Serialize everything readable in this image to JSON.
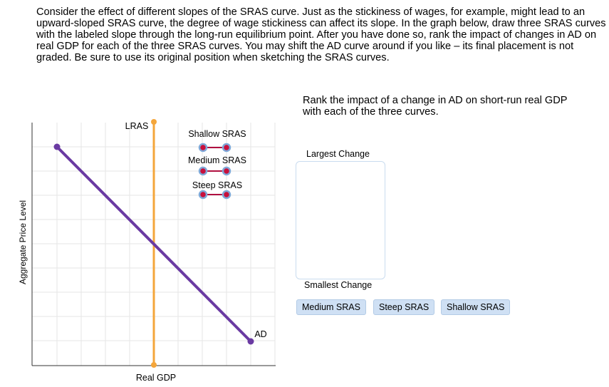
{
  "instructions": "Consider the effect of different slopes of the SRAS curve. Just as the stickiness of wages, for example, might lead to an upward-sloped SRAS curve, the degree of wage stickiness can affect its slope. In the graph below, draw three SRAS curves with the labeled slope through the long-run equilibrium point. After you have done so, rank the impact of changes in AD on real GDP for each of the three SRAS curves. You may shift the AD curve around if you like – its final placement is not graded. Be sure to use its original position when sketching the SRAS curves.",
  "graph": {
    "y_label": "Aggregate Price Level",
    "x_label": "Real GDP",
    "lras_label": "LRAS",
    "ad_label": "AD",
    "tools": [
      "Shallow SRAS",
      "Medium SRAS",
      "Steep SRAS"
    ]
  },
  "ranking": {
    "prompt": "Rank the impact of a change in AD on short-run real GDP with each of the three curves.",
    "top_label": "Largest Change",
    "bottom_label": "Smallest Change",
    "items": [
      "Medium SRAS",
      "Steep SRAS",
      "Shallow SRAS"
    ]
  }
}
